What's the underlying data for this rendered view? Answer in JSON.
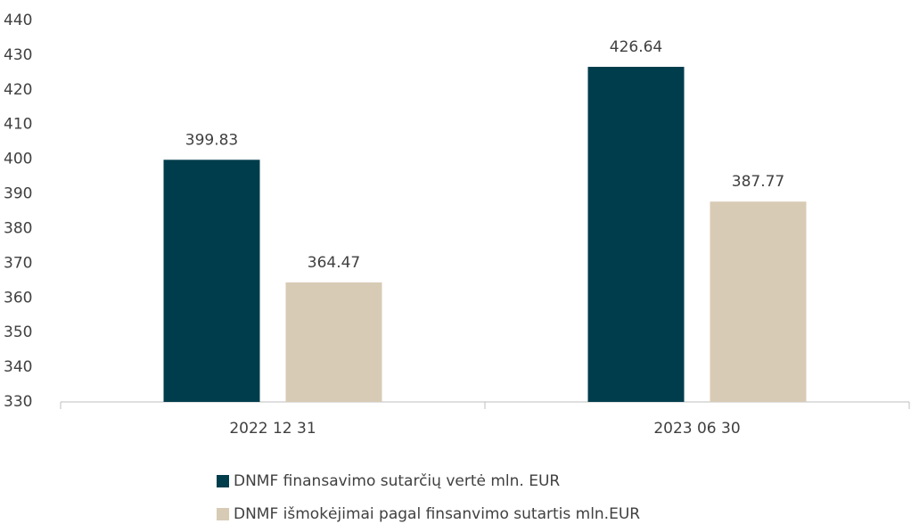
{
  "chart_data": {
    "type": "bar",
    "categories": [
      "2022 12 31",
      "2023 06 30"
    ],
    "series": [
      {
        "name": "DNMF finansavimo sutarčių vertė mln. EUR",
        "color": "#003d4c",
        "values": [
          399.83,
          426.64
        ]
      },
      {
        "name": "DNMF išmokėjimai pagal finsanvimo sutartis mln.EUR",
        "color": "#d8cbb5",
        "values": [
          364.47,
          387.77
        ]
      }
    ],
    "ylim": [
      330,
      440
    ],
    "yticks": [
      330,
      340,
      350,
      360,
      370,
      380,
      390,
      400,
      410,
      420,
      430,
      440
    ],
    "grid": false,
    "legend": "bottom"
  }
}
